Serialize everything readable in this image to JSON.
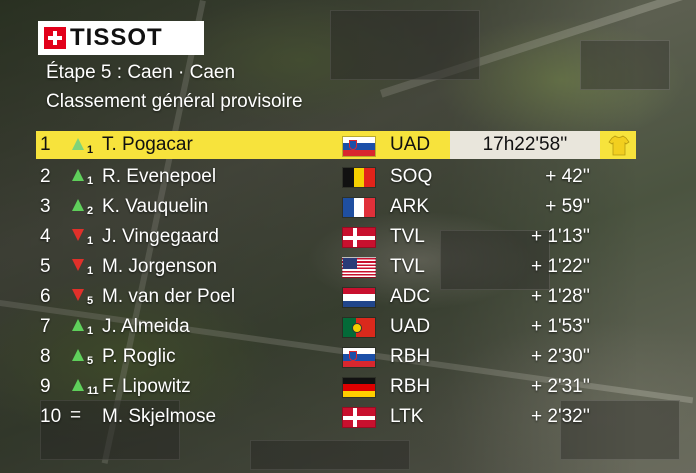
{
  "brand": {
    "logo_text": "TISSOT",
    "logo_icon": "swiss-cross-icon",
    "logo_color": "#e2001a"
  },
  "header": {
    "stage": "Étape 5 : Caen · Caen",
    "classification": "Classement général provisoire"
  },
  "colors": {
    "leader_bar": "#f7e33c",
    "leader_time_box": "#e9e6dc",
    "up": "#5fcf5b",
    "down": "#e0302a"
  },
  "standings": [
    {
      "pos": "1",
      "trend": "up",
      "change": "1",
      "rider": "T. Pogacar",
      "country": "SVN",
      "team": "UAD",
      "time": "17h22'58''",
      "leader_icon": "yellow-jersey-icon"
    },
    {
      "pos": "2",
      "trend": "up",
      "change": "1",
      "rider": "R. Evenepoel",
      "country": "BEL",
      "team": "SOQ",
      "time": "+ 42''"
    },
    {
      "pos": "3",
      "trend": "up",
      "change": "2",
      "rider": "K. Vauquelin",
      "country": "FRA",
      "team": "ARK",
      "time": "+ 59''"
    },
    {
      "pos": "4",
      "trend": "down",
      "change": "1",
      "rider": "J. Vingegaard",
      "country": "DEN",
      "team": "TVL",
      "time": "+ 1'13''"
    },
    {
      "pos": "5",
      "trend": "down",
      "change": "1",
      "rider": "M. Jorgenson",
      "country": "USA",
      "team": "TVL",
      "time": "+ 1'22''"
    },
    {
      "pos": "6",
      "trend": "down",
      "change": "5",
      "rider": "M. van der Poel",
      "country": "NED",
      "team": "ADC",
      "time": "+ 1'28''"
    },
    {
      "pos": "7",
      "trend": "up",
      "change": "1",
      "rider": "J. Almeida",
      "country": "POR",
      "team": "UAD",
      "time": "+ 1'53''"
    },
    {
      "pos": "8",
      "trend": "up",
      "change": "5",
      "rider": "P. Roglic",
      "country": "SVN",
      "team": "RBH",
      "time": "+ 2'30''"
    },
    {
      "pos": "9",
      "trend": "up",
      "change": "11",
      "rider": "F. Lipowitz",
      "country": "GER",
      "team": "RBH",
      "time": "+ 2'31''"
    },
    {
      "pos": "10",
      "trend": "same",
      "change": "",
      "rider": "M. Skjelmose",
      "country": "DEN",
      "team": "LTK",
      "time": "+ 2'32''"
    }
  ],
  "same_symbol": "="
}
